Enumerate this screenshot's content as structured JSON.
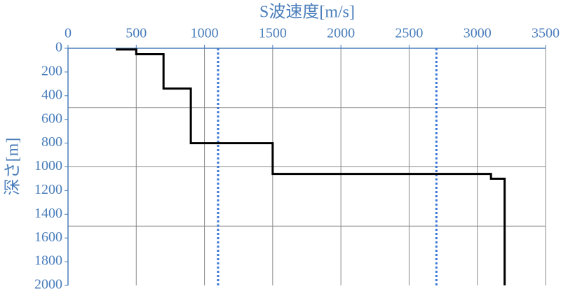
{
  "chart_data": {
    "type": "line",
    "x_label": "S波速度[m/s]",
    "y_label": "深さ[m]",
    "xlim": [
      0,
      3500
    ],
    "xticks": [
      0,
      500,
      1000,
      1500,
      2000,
      2500,
      3000,
      3500
    ],
    "ylim": [
      0,
      2000
    ],
    "yticks": [
      0,
      200,
      400,
      600,
      800,
      1000,
      1200,
      1400,
      1600,
      1800,
      2000
    ],
    "y_inverted": true,
    "x_axis_position": "top",
    "grid": true,
    "ygrid": [
      500,
      1000,
      1500
    ],
    "axis_color": "#4a7ebb",
    "grid_color": "#888888",
    "series": [
      {
        "color": "#000000",
        "x": [
          350,
          500,
          500,
          700,
          700,
          900,
          900,
          1500,
          1500,
          3100,
          3100,
          3200,
          3200
        ],
        "values": [
          10,
          10,
          50,
          50,
          340,
          340,
          800,
          800,
          1060,
          1060,
          1100,
          1100,
          2000
        ]
      }
    ],
    "vlines": [
      1100,
      2700
    ],
    "vline_color": "#3a78d8",
    "vline_style": "dotted"
  }
}
